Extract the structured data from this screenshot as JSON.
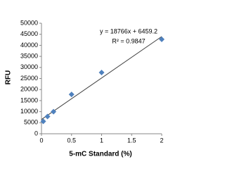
{
  "chart_data": {
    "type": "scatter",
    "x_label": "5-mC Standard (%)",
    "y_label": "RFU",
    "x": [
      0.03,
      0.1,
      0.2,
      0.5,
      1,
      2
    ],
    "series": [
      {
        "name": "RFU",
        "color": "#4f81bd",
        "values": [
          5600,
          7800,
          10000,
          17800,
          27700,
          42700
        ]
      }
    ],
    "trendline": {
      "slope": 18766,
      "intercept": 6459.2,
      "color": "#404040"
    },
    "annotations": [
      "y = 18766x + 6459.2",
      "R² = 0.9847"
    ],
    "xlim": [
      0,
      2
    ],
    "xticks": [
      0,
      0.5,
      1,
      1.5,
      2
    ],
    "ylim": [
      0,
      50000
    ],
    "yticks": [
      0,
      5000,
      10000,
      15000,
      20000,
      25000,
      30000,
      35000,
      40000,
      45000,
      50000
    ],
    "grid": false
  }
}
